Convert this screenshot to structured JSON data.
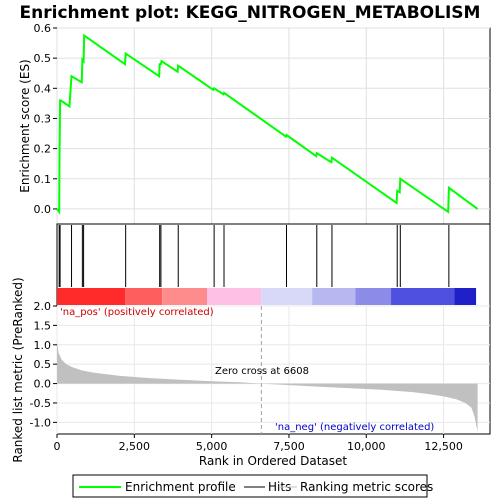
{
  "chart_data": {
    "type": "line",
    "title": "Enrichment plot: KEGG_NITROGEN_METABOLISM",
    "xlabel": "Rank in Ordered Dataset",
    "es_panel": {
      "ylabel": "Enrichment score (ES)",
      "ylim": [
        -0.05,
        0.6
      ],
      "yticks": [
        0.0,
        0.1,
        0.2,
        0.3,
        0.4,
        0.5,
        0.6
      ],
      "ytick_labels": [
        "0.0",
        "0.1",
        "0.2",
        "0.3",
        "0.4",
        "0.5",
        "0.6"
      ],
      "series": [
        {
          "name": "Enrichment profile",
          "color": "#00ff00",
          "x": [
            0,
            70,
            80,
            100,
            120,
            400,
            470,
            800,
            820,
            860,
            880,
            2200,
            2220,
            3300,
            3320,
            3360,
            3380,
            3900,
            3920,
            5050,
            5080,
            5380,
            5400,
            7400,
            7420,
            8380,
            8400,
            8870,
            8890,
            10980,
            11000,
            11080,
            11100,
            12650,
            12670,
            13600
          ],
          "y": [
            0.0,
            -0.01,
            0.18,
            0.36,
            0.36,
            0.34,
            0.44,
            0.42,
            0.495,
            0.49,
            0.575,
            0.48,
            0.515,
            0.44,
            0.48,
            0.48,
            0.49,
            0.455,
            0.475,
            0.395,
            0.4,
            0.38,
            0.385,
            0.24,
            0.245,
            0.175,
            0.185,
            0.155,
            0.17,
            0.02,
            0.06,
            0.055,
            0.1,
            -0.01,
            0.07,
            0.0
          ]
        }
      ]
    },
    "hits": [
      70,
      100,
      470,
      820,
      860,
      2220,
      3320,
      3360,
      3920,
      5080,
      5400,
      7420,
      8400,
      8890,
      11000,
      11100,
      12670
    ],
    "metric_panel": {
      "ylabel": "Ranked list metric (PreRanked)",
      "ylim": [
        -1.3,
        2.0
      ],
      "yticks": [
        2.0,
        1.5,
        1.0,
        0.5,
        0.0,
        -0.5,
        -1.0
      ],
      "ytick_labels": [
        "2.0",
        "1.5",
        "1.0",
        "0.5",
        "0.0",
        "-0.5",
        "-1.0"
      ],
      "series": [
        {
          "name": "Ranking metric scores",
          "color": "#c0c0c0",
          "x": [
            0,
            50,
            150,
            300,
            500,
            800,
            1200,
            2000,
            3000,
            4000,
            5000,
            6000,
            6608,
            7500,
            8500,
            9500,
            10500,
            11500,
            12000,
            12500,
            12900,
            13200,
            13400,
            13500,
            13550,
            13600
          ],
          "y": [
            1.1,
            0.8,
            0.62,
            0.5,
            0.42,
            0.34,
            0.28,
            0.2,
            0.14,
            0.1,
            0.06,
            0.03,
            0.0,
            -0.04,
            -0.08,
            -0.12,
            -0.16,
            -0.22,
            -0.27,
            -0.33,
            -0.4,
            -0.5,
            -0.62,
            -0.85,
            -1.05,
            -1.25
          ]
        }
      ],
      "zero_cross": 6608,
      "zero_cross_label": "Zero cross at 6608",
      "pos_label": "'na_pos' (positively correlated)",
      "neg_label": "'na_neg' (negatively correlated)"
    },
    "xlim": [
      0,
      14000
    ],
    "xticks": [
      0,
      2500,
      5000,
      7500,
      10000,
      12500
    ],
    "xtick_labels": [
      "0",
      "2,500",
      "5,000",
      "7,500",
      "10,000",
      "12,500"
    ],
    "color_bar": {
      "segments": [
        {
          "end": 2200,
          "color": "#ff2b2b"
        },
        {
          "end": 3400,
          "color": "#ff5e5e"
        },
        {
          "end": 4850,
          "color": "#ff8c8c"
        },
        {
          "end": 6600,
          "color": "#ffc0e6"
        },
        {
          "end": 8250,
          "color": "#d8d8f8"
        },
        {
          "end": 9650,
          "color": "#b8b8f0"
        },
        {
          "end": 10800,
          "color": "#8c8ce8"
        },
        {
          "end": 12850,
          "color": "#5050e0"
        },
        {
          "end": 13550,
          "color": "#2020c8"
        }
      ]
    },
    "legend": {
      "items": [
        {
          "label": "Enrichment profile",
          "color": "#00ff00"
        },
        {
          "label": "Hits",
          "color": "#000000"
        },
        {
          "label": "Ranking metric scores",
          "color": "#c0c0c0"
        }
      ]
    }
  }
}
